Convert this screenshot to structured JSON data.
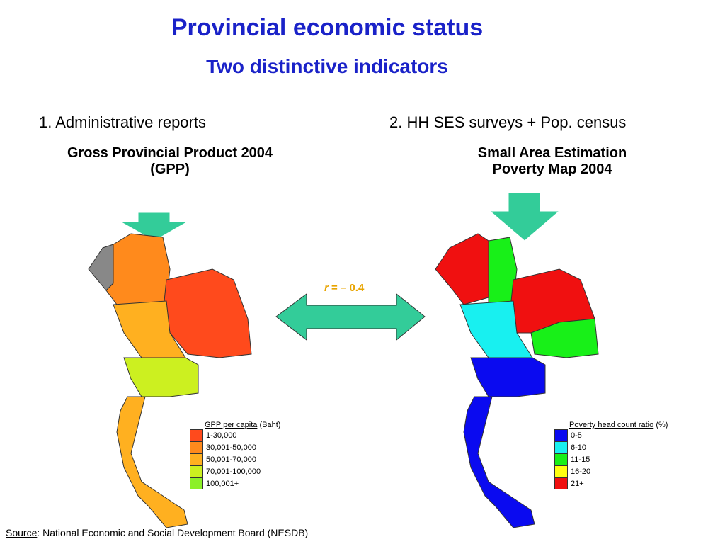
{
  "header": {
    "title": "Provincial economic status",
    "subtitle": "Two distinctive indicators"
  },
  "left": {
    "heading": "1. Administrative reports",
    "subheading": [
      "Gross Provincial Product 2004",
      "(GPP)"
    ],
    "legend": {
      "title": "GPP per capita",
      "unit": "(Baht)",
      "items": [
        {
          "label": "1-30,000",
          "color": "#ff4a1c"
        },
        {
          "label": "30,001-50,000",
          "color": "#ff8a1c"
        },
        {
          "label": "50,001-70,000",
          "color": "#ffb020"
        },
        {
          "label": "70,001-100,000",
          "color": "#ccf020"
        },
        {
          "label": "100,001+",
          "color": "#8cf028"
        }
      ]
    }
  },
  "right": {
    "heading": "2. HH SES surveys + Pop. census",
    "subheading": [
      "Small Area Estimation",
      "Poverty Map 2004"
    ],
    "legend": {
      "title": "Poverty head count ratio",
      "unit": "(%)",
      "items": [
        {
          "label": "0-5",
          "color": "#0a0af0"
        },
        {
          "label": "6-10",
          "color": "#18f0f0"
        },
        {
          "label": "11-15",
          "color": "#18f018"
        },
        {
          "label": "16-20",
          "color": "#ffff10"
        },
        {
          "label": "21+",
          "color": "#f01010"
        }
      ]
    }
  },
  "correlation": {
    "symbol": "r",
    "text": "= – 0.4"
  },
  "source": {
    "label": "Source",
    "text": ": National Economic and Social Development Board (NESDB)"
  }
}
